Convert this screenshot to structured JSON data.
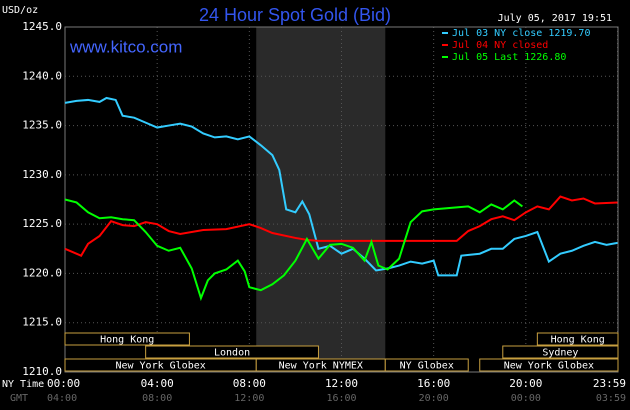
{
  "chart_data": {
    "type": "line",
    "title": "24 Hour Spot Gold (Bid)",
    "timestamp": "July 05, 2017 19:51",
    "unit_label": "USD/oz",
    "site": "www.kitco.com",
    "ylim": [
      1210,
      1245
    ],
    "yticks": [
      {
        "value": 1210,
        "label": "1210.0"
      },
      {
        "value": 1215,
        "label": "1215.0"
      },
      {
        "value": 1220,
        "label": "1220.0"
      },
      {
        "value": 1225,
        "label": "1225.0"
      },
      {
        "value": 1230,
        "label": "1230.0"
      },
      {
        "value": 1235,
        "label": "1235.0"
      },
      {
        "value": 1240,
        "label": "1240.0"
      },
      {
        "value": 1245,
        "label": "1245.0"
      }
    ],
    "xlim": [
      0,
      24
    ],
    "xticks": [
      {
        "value": 0,
        "label": "00:00"
      },
      {
        "value": 4,
        "label": "04:00"
      },
      {
        "value": 8,
        "label": "08:00"
      },
      {
        "value": 12,
        "label": "12:00"
      },
      {
        "value": 16,
        "label": "16:00"
      },
      {
        "value": 20,
        "label": "20:00"
      },
      {
        "value": 23.98,
        "label": "23:59"
      }
    ],
    "x_row_label": "NY Time",
    "gmt_row_label": "GMT",
    "gmt_labels": [
      "04:00",
      "08:00",
      "12:00",
      "16:00",
      "20:00",
      "00:00",
      "03:59"
    ],
    "grid": true,
    "session_rows": [
      [
        {
          "label": "Hong Kong",
          "start": 0,
          "end": 5.4
        },
        {
          "label": "Hong Kong",
          "start": 20.5,
          "end": 24
        }
      ],
      [
        {
          "label": "London",
          "start": 3.5,
          "end": 11
        },
        {
          "label": "Sydney",
          "start": 19,
          "end": 24
        }
      ],
      [
        {
          "label": "New York Globex",
          "start": 0,
          "end": 8.3
        },
        {
          "label": "New York NYMEX",
          "start": 8.3,
          "end": 13.9
        },
        {
          "label": "NY Globex",
          "start": 13.9,
          "end": 17.5
        },
        {
          "label": "New York Globex",
          "start": 18,
          "end": 24
        }
      ]
    ],
    "series": [
      {
        "name": "Jul 03 NY close 1219.70",
        "color": "#33ccff",
        "x": [
          0,
          0.5,
          1,
          1.5,
          1.8,
          2.2,
          2.5,
          3,
          3.5,
          4,
          4.5,
          5,
          5.5,
          6,
          6.5,
          7,
          7.5,
          8,
          8.5,
          9,
          9.3,
          9.6,
          10,
          10.3,
          10.6,
          11,
          11.5,
          12,
          12.5,
          13,
          13.5,
          14,
          14.5,
          15,
          15.5,
          16,
          16.2,
          17,
          17.2,
          18,
          18.5,
          19,
          19.5,
          20,
          20.5,
          21,
          21.5,
          22,
          22.5,
          23,
          23.5,
          23.98
        ],
        "values": [
          1237.3,
          1237.5,
          1237.6,
          1237.4,
          1237.8,
          1237.6,
          1236,
          1235.8,
          1235.3,
          1234.8,
          1235,
          1235.2,
          1234.9,
          1234.2,
          1233.8,
          1233.9,
          1233.6,
          1233.9,
          1233,
          1232,
          1230.5,
          1226.5,
          1226.2,
          1227.3,
          1226,
          1222.5,
          1222.8,
          1222,
          1222.5,
          1221.5,
          1220.3,
          1220.5,
          1220.8,
          1221.2,
          1221,
          1221.3,
          1219.8,
          1219.8,
          1221.8,
          1222,
          1222.5,
          1222.5,
          1223.5,
          1223.8,
          1224.2,
          1221.2,
          1222,
          1222.3,
          1222.8,
          1223.2,
          1222.9,
          1223.1
        ]
      },
      {
        "name": "Jul 04 NY closed",
        "color": "#ff0000",
        "x": [
          0,
          0.7,
          1,
          1.5,
          2,
          2.5,
          3,
          3.5,
          4,
          4.5,
          5,
          6,
          7,
          8,
          8.5,
          9,
          10,
          10.5,
          11,
          17,
          17.5,
          18,
          18.5,
          19,
          19.5,
          20,
          20.5,
          21,
          21.5,
          22,
          22.5,
          23,
          23.98
        ],
        "values": [
          1222.5,
          1221.8,
          1223,
          1223.8,
          1225.3,
          1224.9,
          1224.8,
          1225.2,
          1225,
          1224.3,
          1224,
          1224.4,
          1224.5,
          1225,
          1224.6,
          1224.1,
          1223.6,
          1223.4,
          1223.3,
          1223.3,
          1224.3,
          1224.8,
          1225.5,
          1225.8,
          1225.4,
          1226.2,
          1226.8,
          1226.5,
          1227.8,
          1227.4,
          1227.6,
          1227.1,
          1227.2
        ]
      },
      {
        "name": "Jul 05 Last 1226.80",
        "color": "#00ff00",
        "x": [
          0,
          0.5,
          1,
          1.5,
          2,
          2.5,
          3,
          3.5,
          4,
          4.5,
          5,
          5.5,
          5.9,
          6.2,
          6.5,
          7,
          7.5,
          7.8,
          8,
          8.5,
          9,
          9.5,
          10,
          10.5,
          11,
          11.5,
          12,
          12.5,
          13,
          13.3,
          13.6,
          14,
          14.5,
          15,
          15.5,
          16,
          17,
          17.5,
          18,
          18.5,
          19,
          19.5,
          19.85
        ],
        "values": [
          1227.5,
          1227.2,
          1226.2,
          1225.6,
          1225.7,
          1225.5,
          1225.4,
          1224.2,
          1222.8,
          1222.3,
          1222.6,
          1220.5,
          1217.5,
          1219.3,
          1220,
          1220.4,
          1221.3,
          1220.2,
          1218.6,
          1218.3,
          1218.9,
          1219.8,
          1221.3,
          1223.5,
          1221.5,
          1222.9,
          1223,
          1222.6,
          1221.3,
          1223.2,
          1220.8,
          1220.4,
          1221.5,
          1225.2,
          1226.3,
          1226.5,
          1226.7,
          1226.8,
          1226.2,
          1227,
          1226.5,
          1227.4,
          1226.8
        ]
      }
    ]
  }
}
